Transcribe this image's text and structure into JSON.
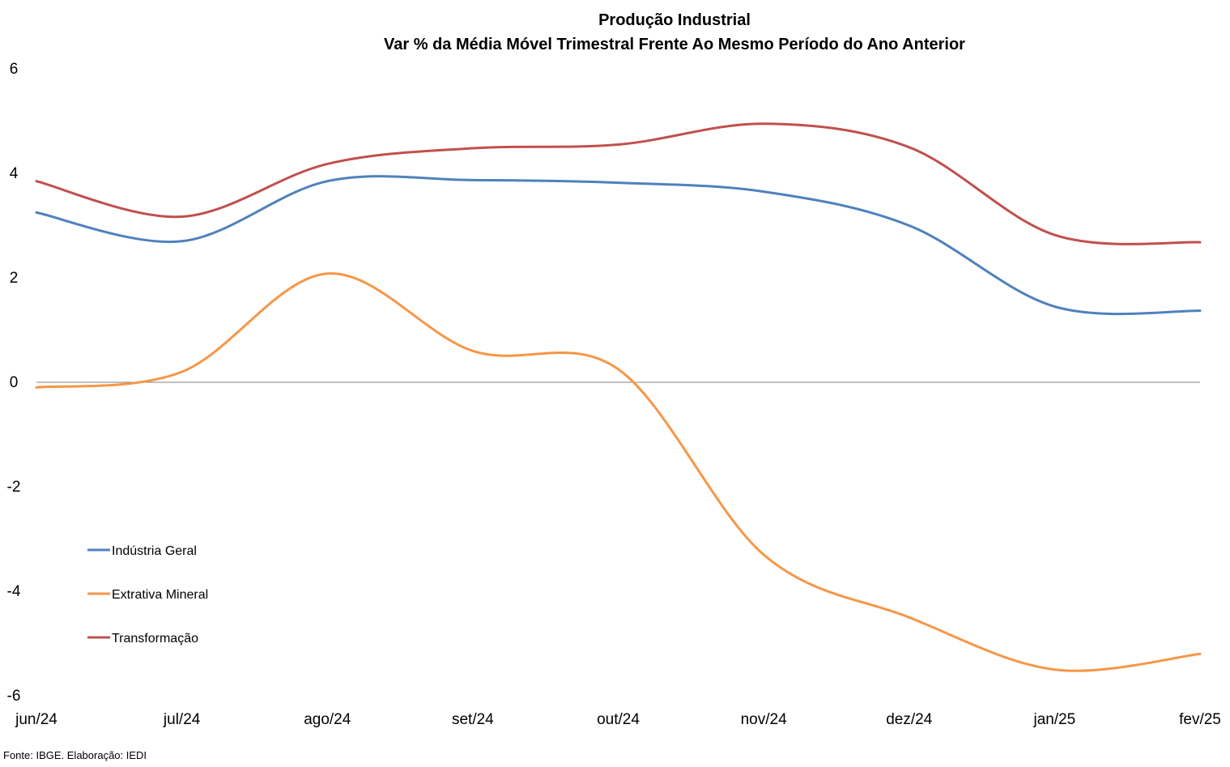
{
  "chart_data": {
    "type": "line",
    "title": "Produção Industrial",
    "subtitle": "Var % da Média Móvel Trimestral Frente Ao Mesmo Período do Ano Anterior",
    "xlabel": "",
    "ylabel": "",
    "categories": [
      "jun/24",
      "jul/24",
      "ago/24",
      "set/24",
      "out/24",
      "nov/24",
      "dez/24",
      "jan/25",
      "fev/25"
    ],
    "ylim": [
      -6,
      6
    ],
    "yticks": [
      "6",
      "4",
      "2",
      "0",
      "-2",
      "-4",
      "-6"
    ],
    "ytick_values": [
      6,
      4,
      2,
      0,
      -2,
      -4,
      -6
    ],
    "grid": false,
    "zero_line": true,
    "smooth": true,
    "legend_position": "left",
    "series": [
      {
        "name": "Indústria Geral",
        "color": "#4F81BD",
        "values": [
          3.25,
          2.7,
          3.85,
          3.87,
          3.82,
          3.65,
          3.0,
          1.45,
          1.37
        ]
      },
      {
        "name": "Extrativa Mineral",
        "color": "#F79646",
        "values": [
          -0.1,
          0.2,
          2.08,
          0.6,
          0.25,
          -3.3,
          -4.5,
          -5.5,
          -5.2
        ]
      },
      {
        "name": "Transformação",
        "color": "#C0504D",
        "values": [
          3.85,
          3.17,
          4.18,
          4.48,
          4.55,
          4.95,
          4.5,
          2.82,
          2.68
        ]
      }
    ],
    "source": "Fonte: IBGE. Elaboração: IEDI"
  }
}
